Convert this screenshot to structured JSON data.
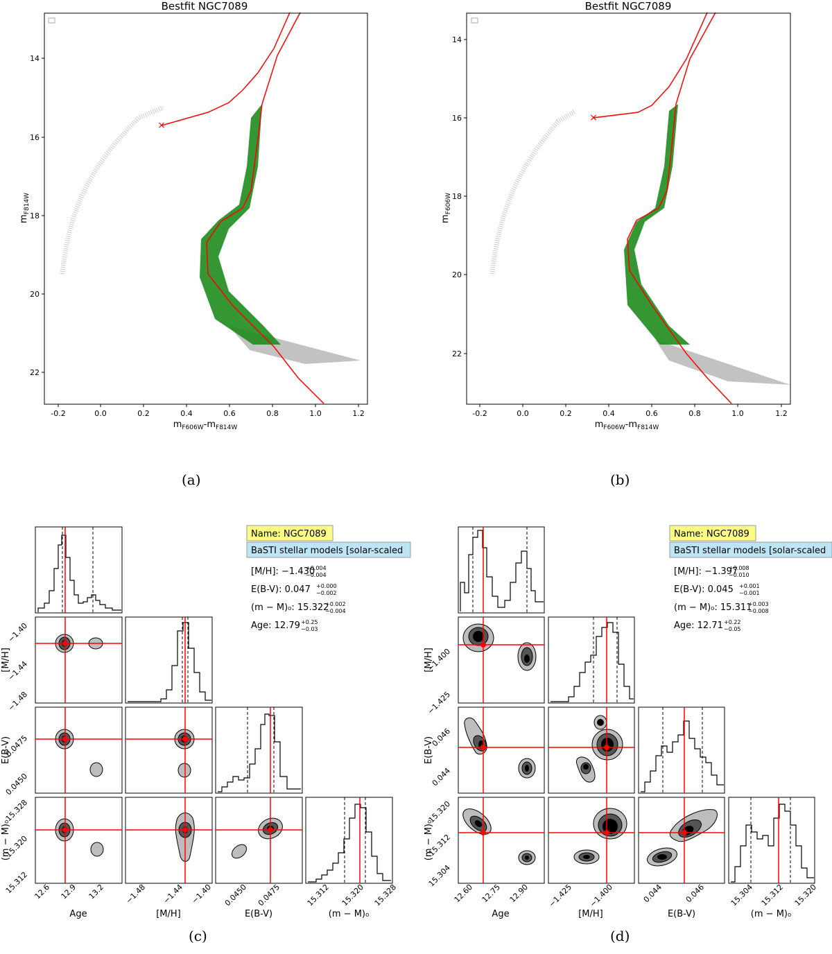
{
  "figure": {
    "captions": {
      "a": "(a)",
      "b": "(b)",
      "c": "(c)",
      "d": "(d)"
    },
    "cmd_a": {
      "title": "Bestfit NGC7089",
      "xlabel": "m",
      "xlabel_sub1": "F606W",
      "xlabel_dash": "-m",
      "xlabel_sub2": "F814W",
      "ylabel": "m",
      "ylabel_sub": "F814W",
      "xticks": [
        "-0.2",
        "0.0",
        "0.2",
        "0.4",
        "0.6",
        "0.8",
        "1.0",
        "1.2"
      ],
      "yticks": [
        "14",
        "16",
        "18",
        "20",
        "22"
      ]
    },
    "cmd_b": {
      "title": "Bestfit NGC7089",
      "xlabel": "m",
      "xlabel_sub1": "F606W",
      "xlabel_dash": "-m",
      "xlabel_sub2": "F814W",
      "ylabel": "m",
      "ylabel_sub": "F606W",
      "xticks": [
        "-0.2",
        "0.0",
        "0.2",
        "0.4",
        "0.6",
        "0.8",
        "1.0",
        "1.2"
      ],
      "yticks": [
        "14",
        "16",
        "18",
        "20",
        "22"
      ]
    },
    "corner_c": {
      "name_tag": "Name: NGC7089",
      "model_tag": "BaSTI stellar models [solar-scaled",
      "mh": {
        "label": "[M/H]: ",
        "value": "−1.430",
        "up": "+0.004",
        "lo": "−0.004"
      },
      "ebv": {
        "label": "E(B-V): ",
        "value": "0.047",
        "up": "+0.000",
        "lo": "−0.002"
      },
      "dm": {
        "label": "(m − M)₀: ",
        "value": "15.322",
        "up": "+0.002",
        "lo": "−0.004"
      },
      "age": {
        "label": "Age: ",
        "value": "12.79",
        "up": "+0.25",
        "lo": "−0.03"
      },
      "xlabels": [
        "Age",
        "[M/H]",
        "E(B-V)",
        "(m − M)₀"
      ],
      "ylabels": [
        "[M/H]",
        "E(B-V)",
        "(m − M)₀"
      ],
      "age_ticks": [
        "12.6",
        "12.9",
        "13.2"
      ],
      "mh_ticks": [
        "−1.48",
        "−1.44",
        "−1.40"
      ],
      "ebv_ticks": [
        "0.0450",
        "0.0475"
      ],
      "dm_ticks": [
        "15.312",
        "15.320",
        "15.328"
      ]
    },
    "corner_d": {
      "name_tag": "Name: NGC7089",
      "model_tag": "BaSTI stellar models [solar-scaled",
      "mh": {
        "label": "[M/H]: ",
        "value": "−1.397",
        "up": "+0.008",
        "lo": "−0.010"
      },
      "ebv": {
        "label": "E(B-V): ",
        "value": "0.045",
        "up": "+0.001",
        "lo": "−0.001"
      },
      "dm": {
        "label": "(m − M)₀: ",
        "value": "15.311",
        "up": "+0.003",
        "lo": "−0.008"
      },
      "age": {
        "label": "Age: ",
        "value": "12.71",
        "up": "+0.22",
        "lo": "−0.05"
      },
      "xlabels": [
        "Age",
        "[M/H]",
        "E(B-V)",
        "(m − M)₀"
      ],
      "ylabels": [
        "[M/H]",
        "E(B-V)",
        "(m − M)₀"
      ],
      "age_ticks": [
        "12.60",
        "12.75",
        "12.90"
      ],
      "mh_ticks": [
        "−1.425",
        "−1.400"
      ],
      "ebv_ticks": [
        "0.044",
        "0.046"
      ],
      "dm_ticks": [
        "15.304",
        "15.312",
        "15.320"
      ]
    },
    "colors": {
      "isochrone": "#ff0000",
      "fit_stars": "#1e8c1e",
      "all_stars": "#909090"
    }
  }
}
